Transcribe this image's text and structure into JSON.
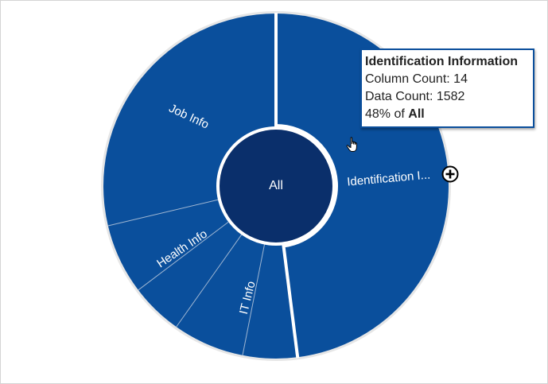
{
  "chart_data": {
    "type": "sunburst",
    "center": {
      "label": "All"
    },
    "segments": [
      {
        "name": "Identification Information",
        "label": "Identification I...",
        "share": 0.48
      },
      {
        "name": "IT Info",
        "label": "IT Info",
        "share": 0.118
      },
      {
        "name": "Health Info",
        "label": "Health Info",
        "share": 0.115
      },
      {
        "name": "Job Info",
        "label": "Job Info",
        "share": 0.287
      }
    ],
    "sub_segments": [
      {
        "parent": "IT Info",
        "shares": [
          0.051,
          0.067
        ]
      },
      {
        "parent": "Health Info",
        "shares": [
          0.049,
          0.066
        ]
      }
    ],
    "colors": {
      "segment": "#0a4f9c",
      "center": "#0a2f6b",
      "divider": "#9fb6d2",
      "separator": "#ffffff",
      "outline": "#e6e6e6"
    }
  },
  "tooltip": {
    "title": "Identification Information",
    "column_count_label": "Column Count: 14",
    "data_count_label": "Data Count: 1582",
    "percent_prefix": "48% of ",
    "percent_target": "All"
  },
  "icons": {
    "zoom": "plus-circle-icon",
    "cursor": "hand-pointer-icon"
  }
}
